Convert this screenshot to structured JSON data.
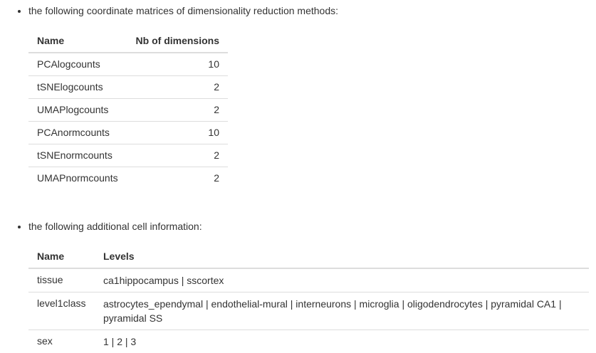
{
  "dimred_section": {
    "intro": "the following coordinate matrices of dimensionality reduction methods:",
    "headers": {
      "name": "Name",
      "dims": "Nb of dimensions"
    },
    "rows": [
      {
        "name": "PCAlogcounts",
        "dims": "10"
      },
      {
        "name": "tSNElogcounts",
        "dims": "2"
      },
      {
        "name": "UMAPlogcounts",
        "dims": "2"
      },
      {
        "name": "PCAnormcounts",
        "dims": "10"
      },
      {
        "name": "tSNEnormcounts",
        "dims": "2"
      },
      {
        "name": "UMAPnormcounts",
        "dims": "2"
      }
    ]
  },
  "cellinfo_section": {
    "intro": "the following additional cell information:",
    "headers": {
      "name": "Name",
      "levels": "Levels"
    },
    "rows": [
      {
        "name": "tissue",
        "levels": "ca1hippocampus | sscortex"
      },
      {
        "name": "level1class",
        "levels": "astrocytes_ependymal | endothelial-mural | interneurons | microglia | oligodendrocytes | pyramidal CA1 | pyramidal SS"
      },
      {
        "name": "sex",
        "levels": "1 | 2 | 3"
      }
    ]
  }
}
